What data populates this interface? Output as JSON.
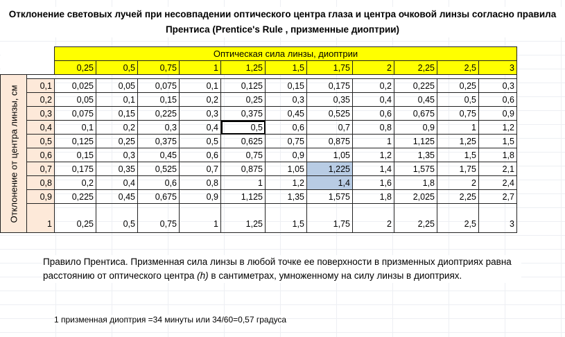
{
  "title": {
    "line1": "Отклонение световых лучей при несовпадении оптического центра глаза и центра очковой линзы согласно правила",
    "line2": "Прентиса (Prentice's Rule , призменные диоптрии)"
  },
  "table": {
    "column_header": "Оптическая сила линзы, диоптрии",
    "row_header": "Отклонение от центра линзы, см",
    "powers": [
      "0,25",
      "0,5",
      "0,75",
      "1",
      "1,25",
      "1,5",
      "1,75",
      "2",
      "2,25",
      "2,5",
      "3"
    ],
    "rows": [
      {
        "h": "0,1",
        "values": [
          "0,025",
          "0,05",
          "0,075",
          "0,1",
          "0,125",
          "0,15",
          "0,175",
          "0,2",
          "0,225",
          "0,25",
          "0,3"
        ]
      },
      {
        "h": "0,2",
        "values": [
          "0,05",
          "0,1",
          "0,15",
          "0,2",
          "0,25",
          "0,3",
          "0,35",
          "0,4",
          "0,45",
          "0,5",
          "0,6"
        ]
      },
      {
        "h": "0,3",
        "values": [
          "0,075",
          "0,15",
          "0,225",
          "0,3",
          "0,375",
          "0,45",
          "0,525",
          "0,6",
          "0,675",
          "0,75",
          "0,9"
        ]
      },
      {
        "h": "0,4",
        "values": [
          "0,1",
          "0,2",
          "0,3",
          "0,4",
          "0,5",
          "0,6",
          "0,7",
          "0,8",
          "0,9",
          "1",
          "1,2"
        ]
      },
      {
        "h": "0,5",
        "values": [
          "0,125",
          "0,25",
          "0,375",
          "0,5",
          "0,625",
          "0,75",
          "0,875",
          "1",
          "1,125",
          "1,25",
          "1,5"
        ]
      },
      {
        "h": "0,6",
        "values": [
          "0,15",
          "0,3",
          "0,45",
          "0,6",
          "0,75",
          "0,9",
          "1,05",
          "1,2",
          "1,35",
          "1,5",
          "1,8"
        ]
      },
      {
        "h": "0,7",
        "values": [
          "0,175",
          "0,35",
          "0,525",
          "0,7",
          "0,875",
          "1,05",
          "1,225",
          "1,4",
          "1,575",
          "1,75",
          "2,1"
        ]
      },
      {
        "h": "0,8",
        "values": [
          "0,2",
          "0,4",
          "0,6",
          "0,8",
          "1",
          "1,2",
          "1,4",
          "1,6",
          "1,8",
          "2",
          "2,4"
        ]
      },
      {
        "h": "0,9",
        "values": [
          "0,225",
          "0,45",
          "0,675",
          "0,9",
          "1,125",
          "1,35",
          "1,575",
          "1,8",
          "2,025",
          "2,25",
          "2,7"
        ]
      },
      {
        "h": "1",
        "values": [
          "0,25",
          "0,5",
          "0,75",
          "1",
          "1,25",
          "1,5",
          "1,75",
          "2",
          "2,25",
          "2,5",
          "3"
        ]
      }
    ]
  },
  "note": {
    "text_before": "Правило Прентиса. Призменная сила линзы в любой точке ее поверхности в призменных диоптриях равна расстоянию от оптического центра ",
    "h": "(h)",
    "text_after": " в сантиметрах, умноженному на силу линзы в диоптриях."
  },
  "footnote": "1 призменная диоптрия =34 минуты или 34/60=0,57 градуса",
  "colors": {
    "header_yellow": "#ffff00",
    "row_header_peach": "#fde9d9",
    "selection_blue": "#b8cce4"
  }
}
